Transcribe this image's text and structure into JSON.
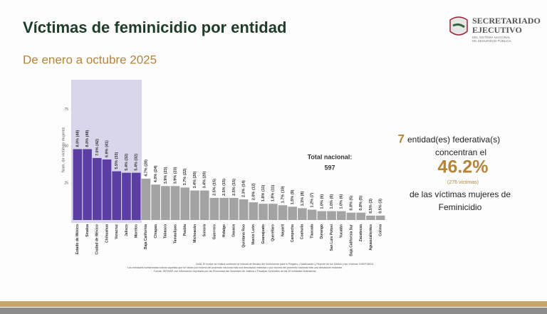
{
  "header": {
    "title": "Víctimas de feminicidio por entidad",
    "subtitle": "De enero a octubre 2025"
  },
  "logo": {
    "line1": "SECRETARIADO",
    "line2": "EJECUTIVO",
    "line3": "DEL SISTEMA NACIONAL",
    "line4": "DE SEGURIDAD PÚBLICA"
  },
  "total": {
    "label": "Total nacional:",
    "value": "597"
  },
  "summary": {
    "count": "7",
    "line1": "entidad(es)  federativa(s)",
    "line2": "concentran el",
    "percent": "46.2%",
    "victims": "(276  víctimas)",
    "line3": "de las  víctimas  mujeres de",
    "line4": "Feminicidio"
  },
  "notes": [
    "Nota: El conteo se realiza conforme al manual de llenado del Instrumento para el Registro, Clasificación y Reporte de los Delitos y las Víctimas CNSP/38/15.",
    "Las entidades sombreadas indican aquellas que se sitúan por encima del promedio nacional más una desviación estándar o por encima del promedio nacional más una desviación estándar.",
    "Fuente: SESNSP con información reportada por las Procuradurías Generales de Justicia o Fiscalías Generales de las 32 entidades federativas."
  ],
  "chart_data": {
    "type": "bar",
    "y_label": "Núm. de víctimas mujeres",
    "categories": [
      "Estado de México",
      "Sinaloa",
      "Ciudad de México",
      "Chihuahua",
      "Veracruz",
      "Jalisco",
      "Morelos",
      "Baja California",
      "Chiapas",
      "Tabasco",
      "Tamaulipas",
      "Puebla",
      "Michoacán",
      "Sonora",
      "Guerrero",
      "Hidalgo",
      "Oaxaca",
      "Quintana Roo",
      "Nuevo León",
      "Guanajuato",
      "Querétaro",
      "Nayarit",
      "Campeche",
      "Coahuila",
      "Tlaxcala",
      "Durango",
      "San Luis Potosí",
      "Yucatán",
      "Baja California Sur",
      "Zacatecas",
      "Aguascalientes",
      "Colima"
    ],
    "values": [
      48,
      48,
      42,
      41,
      33,
      32,
      32,
      28,
      24,
      23,
      23,
      22,
      20,
      20,
      15,
      15,
      15,
      14,
      12,
      11,
      11,
      10,
      9,
      8,
      7,
      6,
      6,
      6,
      5,
      5,
      3,
      3
    ],
    "value_labels": [
      "8.0% (48)",
      "8.0% (48)",
      "7.0% (42)",
      "6.9% (41)",
      "5.5% (33)",
      "5.4% (32)",
      "5.4% (32)",
      "4.7% (28)",
      "4.0% (24)",
      "3.9% (23)",
      "3.9% (23)",
      "3.7% (22)",
      "3.4% (20)",
      "3.4% (20)",
      "2.5% (15)",
      "2.5% (15)",
      "2.5% (15)",
      "2.3% (14)",
      "2.0% (12)",
      "1.8% (11)",
      "1.8% (11)",
      "1.7% (10)",
      "1.5% (9)",
      "1.3% (8)",
      "1.2% (7)",
      "1.0% (6)",
      "1.0% (6)",
      "1.0% (6)",
      "0.8% (5)",
      "0.8% (5)",
      "0.5% (3)",
      "0.5% (3)"
    ],
    "colors": [
      "#5b3ea3",
      "#5b3ea3",
      "#5b3ea3",
      "#5b3ea3",
      "#5b3ea3",
      "#5b3ea3",
      "#5b3ea3",
      "#a3a3a3",
      "#a3a3a3",
      "#a3a3a3",
      "#a3a3a3",
      "#a3a3a3",
      "#a3a3a3",
      "#a3a3a3",
      "#a3a3a3",
      "#a3a3a3",
      "#a3a3a3",
      "#a3a3a3",
      "#a3a3a3",
      "#a3a3a3",
      "#a3a3a3",
      "#a3a3a3",
      "#a3a3a3",
      "#a3a3a3",
      "#a3a3a3",
      "#a3a3a3",
      "#a3a3a3",
      "#a3a3a3",
      "#a3a3a3",
      "#a3a3a3",
      "#a3a3a3",
      "#a3a3a3"
    ],
    "ylim": [
      0,
      95
    ],
    "yticks": [
      25,
      50,
      75
    ]
  }
}
